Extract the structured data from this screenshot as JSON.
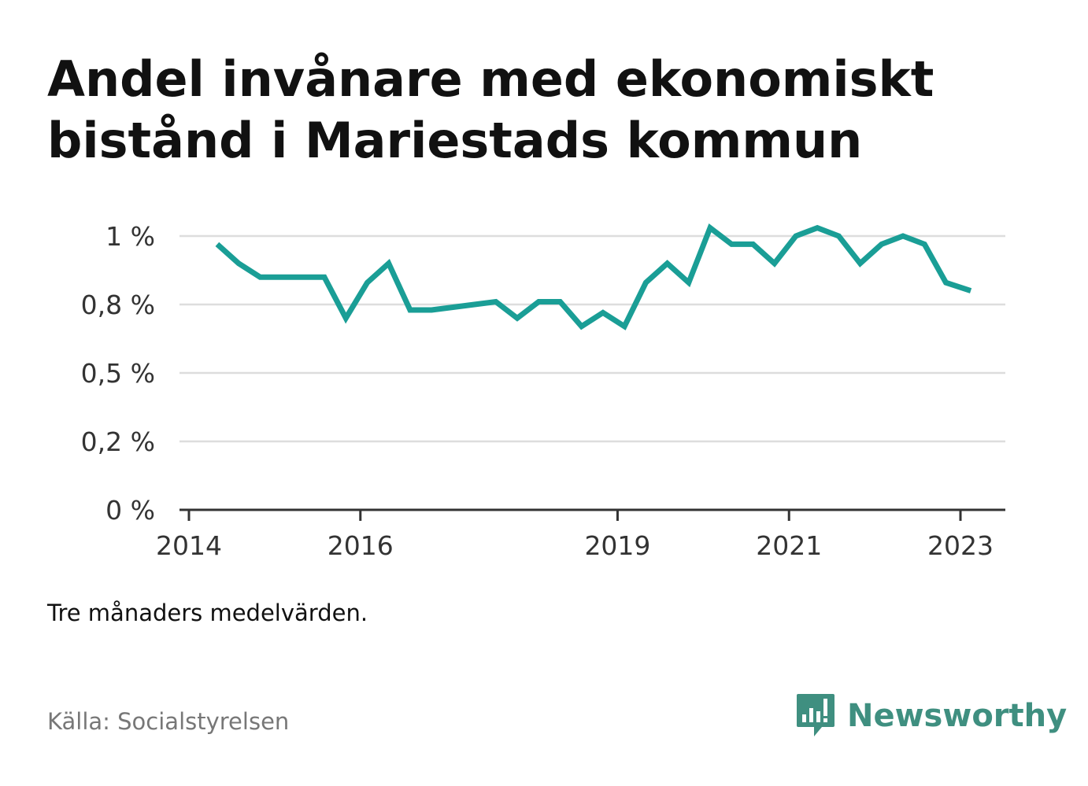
{
  "title": "Andel invånare med ekonomiskt bistånd i Mariestads kommun",
  "note": "Tre månaders medelvärden.",
  "source": "Källa: Socialstyrelsen",
  "brand": {
    "name": "Newsworthy",
    "icon": "newsworthy-logo-icon",
    "color": "#3f8f80"
  },
  "colors": {
    "line": "#1a9e96",
    "grid": "#dddddd",
    "axis": "#333333"
  },
  "chart_data": {
    "type": "line",
    "x_axis": {
      "min": 2014,
      "max": 2023.55,
      "ticks": [
        2014,
        2016,
        2019,
        2021,
        2023
      ],
      "tick_labels": [
        "2014",
        "2016",
        "2019",
        "2021",
        "2023"
      ]
    },
    "y_axis": {
      "min": 0,
      "max": 1.0,
      "ticks": [
        0,
        0.25,
        0.5,
        0.75,
        1.0
      ],
      "tick_labels": [
        "0 %",
        "0,2 %",
        "0,5 %",
        "0,8 %",
        "1 %"
      ]
    },
    "grid": true,
    "series": [
      {
        "x": [
          2014.33,
          2014.58,
          2014.83,
          2015.08,
          2015.33,
          2015.58,
          2015.83,
          2016.08,
          2016.33,
          2016.58,
          2016.83,
          2017.08,
          2017.33,
          2017.58,
          2017.83,
          2018.08,
          2018.33,
          2018.58,
          2018.83,
          2019.08,
          2019.33,
          2019.58,
          2019.83,
          2020.08,
          2020.33,
          2020.58,
          2020.83,
          2021.08,
          2021.33,
          2021.58,
          2021.83,
          2022.08,
          2022.33,
          2022.58,
          2022.83,
          2023.12
        ],
        "y": [
          0.97,
          0.9,
          0.85,
          0.85,
          0.85,
          0.85,
          0.7,
          0.83,
          0.9,
          0.73,
          0.73,
          0.74,
          0.75,
          0.76,
          0.7,
          0.76,
          0.76,
          0.67,
          0.72,
          0.67,
          0.83,
          0.9,
          0.83,
          1.03,
          0.97,
          0.97,
          0.9,
          1.0,
          1.03,
          1.0,
          0.9,
          0.97,
          1.0,
          0.97,
          0.83,
          0.8
        ]
      }
    ]
  }
}
